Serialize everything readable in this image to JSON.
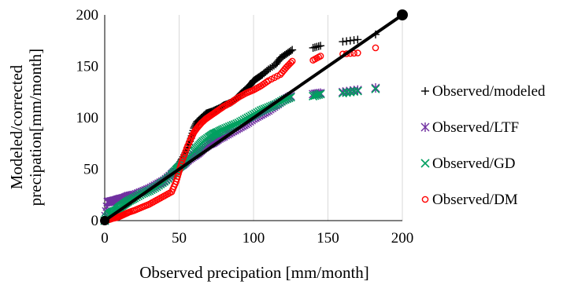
{
  "chart_data": {
    "type": "scatter",
    "title": "",
    "xlabel": "Observed precipation [mm/month]",
    "ylabel": "Modeled/corrected precipation[mm/month]",
    "ylabel_lines": [
      "Modeled/corrected",
      "precipation[mm/month]"
    ],
    "xlim": [
      0,
      200
    ],
    "ylim": [
      0,
      200
    ],
    "x_ticks": [
      0,
      50,
      100,
      150,
      200
    ],
    "y_ticks": [
      0,
      50,
      100,
      150,
      200
    ],
    "x_tick_labels": [
      "0",
      "50",
      "100",
      "150",
      "200"
    ],
    "y_tick_labels": [
      "0",
      "50",
      "100",
      "150",
      "200"
    ],
    "grid": "vertical",
    "legend_position": "right",
    "series": [
      {
        "name": "Observed/modeled",
        "marker": "plus",
        "color": "#000000",
        "x": [
          0,
          5,
          10,
          15,
          20,
          25,
          30,
          35,
          40,
          45,
          50,
          52,
          55,
          58,
          60,
          62,
          65,
          68,
          70,
          72,
          75,
          78,
          80,
          82,
          85,
          88,
          90,
          92,
          95,
          98,
          100,
          103,
          106,
          110,
          115,
          118,
          122,
          126,
          140,
          145,
          160,
          170,
          182
        ],
        "y": [
          0,
          4,
          10,
          16,
          22,
          27,
          31,
          36,
          40,
          46,
          55,
          60,
          68,
          80,
          90,
          96,
          100,
          104,
          105,
          106,
          108,
          110,
          112,
          113,
          115,
          118,
          121,
          124,
          128,
          132,
          136,
          139,
          142,
          147,
          152,
          158,
          162,
          166,
          168,
          170,
          174,
          176,
          181
        ]
      },
      {
        "name": "Observed/LTF",
        "marker": "asterisk",
        "color": "#7030A0",
        "x": [
          0,
          2,
          5,
          8,
          10,
          13,
          16,
          20,
          25,
          30,
          35,
          40,
          45,
          48,
          50,
          53,
          56,
          60,
          63,
          66,
          70,
          73,
          76,
          80,
          85,
          90,
          95,
          100,
          105,
          110,
          115,
          120,
          125,
          140,
          145,
          160,
          170,
          182
        ],
        "y": [
          0,
          18,
          19,
          20,
          21,
          22,
          24,
          25,
          28,
          31,
          35,
          39,
          45,
          49,
          52,
          55,
          59,
          63,
          66,
          70,
          74,
          76,
          79,
          82,
          86,
          90,
          94,
          99,
          103,
          107,
          112,
          117,
          121,
          123,
          124,
          125,
          127,
          129
        ]
      },
      {
        "name": "Observed/GD",
        "marker": "x",
        "color": "#00A060",
        "x": [
          0,
          3,
          5,
          8,
          10,
          13,
          16,
          20,
          25,
          30,
          35,
          40,
          45,
          48,
          50,
          53,
          56,
          60,
          63,
          66,
          70,
          73,
          76,
          80,
          85,
          90,
          95,
          100,
          105,
          110,
          115,
          120,
          125,
          140,
          145,
          160,
          170,
          182
        ],
        "y": [
          0,
          6,
          8,
          10,
          13,
          16,
          19,
          22,
          26,
          29,
          33,
          38,
          44,
          49,
          52,
          56,
          61,
          67,
          72,
          77,
          81,
          84,
          86,
          89,
          92,
          95,
          99,
          103,
          107,
          110,
          113,
          117,
          120,
          121,
          123,
          124,
          126,
          128
        ]
      },
      {
        "name": "Observed/DM",
        "marker": "circle",
        "color": "#FF0000",
        "x": [
          0,
          3,
          5,
          8,
          10,
          13,
          16,
          20,
          25,
          30,
          35,
          40,
          45,
          48,
          50,
          52,
          55,
          58,
          60,
          62,
          65,
          68,
          70,
          73,
          76,
          80,
          85,
          90,
          95,
          100,
          105,
          110,
          118,
          122,
          126,
          140,
          145,
          160,
          170,
          182
        ],
        "y": [
          0,
          1,
          2,
          3,
          4,
          6,
          8,
          10,
          13,
          16,
          20,
          24,
          28,
          38,
          48,
          58,
          70,
          80,
          86,
          90,
          95,
          99,
          101,
          104,
          107,
          111,
          115,
          120,
          124,
          127,
          131,
          136,
          142,
          149,
          155,
          156,
          160,
          162,
          163,
          168
        ]
      },
      {
        "name": "",
        "marker": "line",
        "color": "#000000",
        "x": [
          0,
          200
        ],
        "y": [
          0,
          200
        ]
      }
    ]
  },
  "colors": {
    "axis": "#000000",
    "grid": "#d9d9d9",
    "line": "#000000"
  }
}
